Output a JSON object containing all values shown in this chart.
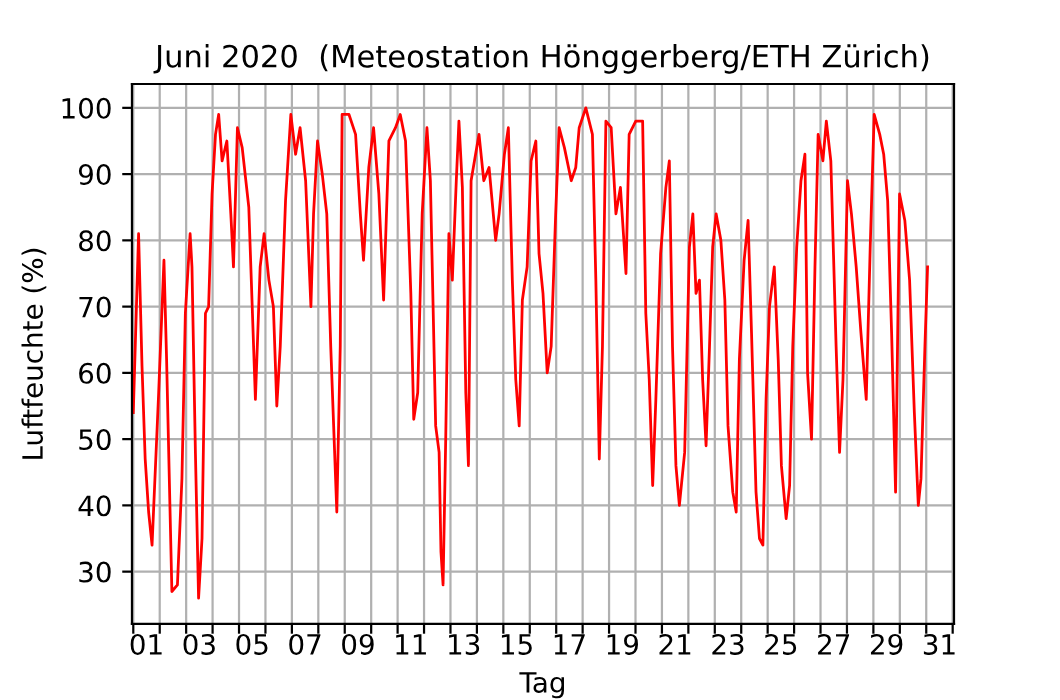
{
  "chart_data": {
    "type": "line",
    "title": "Juni 2020  (Meteostation Hönggerberg/ETH Zürich)",
    "xlabel": "Tag",
    "ylabel": "Luftfeuchte (%)",
    "series": [
      {
        "color": "#ff0000",
        "x": [
          1.0,
          1.2,
          1.33,
          1.45,
          1.58,
          1.71,
          1.96,
          2.16,
          2.26,
          2.46,
          2.67,
          2.84,
          2.97,
          3.15,
          3.22,
          3.35,
          3.47,
          3.6,
          3.73,
          3.85,
          3.98,
          4.11,
          4.23,
          4.36,
          4.54,
          4.69,
          4.79,
          4.94,
          5.12,
          5.37,
          5.62,
          5.8,
          5.95,
          6.13,
          6.3,
          6.43,
          6.56,
          6.76,
          6.96,
          7.14,
          7.31,
          7.52,
          7.72,
          7.82,
          7.97,
          8.15,
          8.32,
          8.47,
          8.58,
          8.7,
          8.83,
          8.9,
          9.16,
          9.41,
          9.59,
          9.71,
          9.91,
          10.09,
          10.29,
          10.47,
          10.67,
          10.92,
          11.1,
          11.3,
          11.5,
          11.61,
          11.76,
          11.93,
          12.11,
          12.24,
          12.44,
          12.57,
          12.64,
          12.72,
          12.82,
          12.94,
          13.07,
          13.22,
          13.32,
          13.45,
          13.58,
          13.68,
          13.78,
          13.95,
          14.08,
          14.26,
          14.46,
          14.71,
          14.84,
          15.04,
          15.19,
          15.34,
          15.47,
          15.6,
          15.72,
          15.9,
          16.05,
          16.23,
          16.35,
          16.5,
          16.66,
          16.81,
          16.98,
          17.11,
          17.31,
          17.57,
          17.74,
          17.87,
          18.12,
          18.37,
          18.5,
          18.63,
          18.75,
          18.88,
          19.08,
          19.26,
          19.43,
          19.64,
          19.76,
          20.01,
          20.27,
          20.39,
          20.52,
          20.65,
          20.77,
          20.95,
          21.15,
          21.28,
          21.4,
          21.53,
          21.66,
          21.86,
          22.04,
          22.17,
          22.29,
          22.42,
          22.54,
          22.67,
          22.8,
          22.92,
          23.05,
          23.23,
          23.38,
          23.5,
          23.68,
          23.81,
          23.93,
          24.11,
          24.26,
          24.39,
          24.56,
          24.69,
          24.82,
          24.94,
          25.07,
          25.25,
          25.4,
          25.52,
          25.7,
          25.83,
          25.95,
          26.1,
          26.26,
          26.41,
          26.51,
          26.66,
          26.79,
          26.91,
          27.09,
          27.22,
          27.39,
          27.59,
          27.72,
          27.85,
          28.02,
          28.17,
          28.35,
          28.53,
          28.73,
          28.88,
          29.03,
          29.24,
          29.39,
          29.54,
          29.69,
          29.84,
          29.99,
          30.19,
          30.37,
          30.55,
          30.7,
          30.8,
          30.95,
          31.05
        ],
        "values": [
          54,
          81,
          61,
          47,
          39,
          34,
          57,
          77,
          62,
          27,
          28,
          44,
          69,
          81,
          76,
          48,
          26,
          35,
          69,
          70,
          87,
          96,
          99,
          92,
          95,
          84,
          76,
          97,
          94,
          85,
          56,
          76,
          81,
          74,
          70,
          55,
          64,
          86,
          99,
          93,
          97,
          89,
          70,
          84,
          95,
          90,
          84,
          64,
          52,
          39,
          64,
          99,
          99,
          96,
          84,
          77,
          91,
          97,
          87,
          71,
          95,
          97,
          99,
          95,
          72,
          53,
          57,
          84,
          97,
          89,
          52,
          48,
          33,
          28,
          50,
          81,
          74,
          89,
          98,
          88,
          57,
          46,
          89,
          93,
          96,
          89,
          91,
          80,
          84,
          93,
          97,
          74,
          59,
          52,
          71,
          76,
          92,
          95,
          78,
          72,
          60,
          64,
          84,
          97,
          94,
          89,
          91,
          97,
          100,
          96,
          74,
          47,
          64,
          98,
          97,
          84,
          88,
          75,
          96,
          98,
          98,
          69,
          59,
          43,
          56,
          78,
          88,
          92,
          64,
          46,
          40,
          48,
          79,
          84,
          72,
          74,
          59,
          49,
          64,
          79,
          84,
          80,
          71,
          52,
          42,
          39,
          62,
          77,
          83,
          66,
          42,
          35,
          34,
          56,
          70,
          76,
          62,
          46,
          38,
          43,
          64,
          79,
          89,
          93,
          60,
          50,
          76,
          96,
          92,
          98,
          92,
          64,
          48,
          59,
          89,
          84,
          76,
          66,
          56,
          79,
          99,
          96,
          93,
          86,
          66,
          42,
          87,
          83,
          74,
          54,
          40,
          44,
          64,
          76
        ]
      }
    ],
    "xlim": [
      0.95,
      32.05
    ],
    "ylim": [
      22.1,
      103.6
    ],
    "xticks": [
      {
        "value": 1,
        "label": null
      },
      {
        "value": 2,
        "label": null
      },
      {
        "value": 3,
        "label": null
      },
      {
        "value": 4,
        "label": null
      },
      {
        "value": 5,
        "label": null
      },
      {
        "value": 6,
        "label": null
      },
      {
        "value": 7,
        "label": null
      },
      {
        "value": 8,
        "label": null
      },
      {
        "value": 9,
        "label": null
      },
      {
        "value": 10,
        "label": null
      },
      {
        "value": 11,
        "label": null
      },
      {
        "value": 12,
        "label": null
      },
      {
        "value": 13,
        "label": null
      },
      {
        "value": 14,
        "label": null
      },
      {
        "value": 15,
        "label": null
      },
      {
        "value": 16,
        "label": null
      },
      {
        "value": 17,
        "label": null
      },
      {
        "value": 18,
        "label": null
      },
      {
        "value": 19,
        "label": null
      },
      {
        "value": 20,
        "label": null
      },
      {
        "value": 21,
        "label": null
      },
      {
        "value": 22,
        "label": null
      },
      {
        "value": 23,
        "label": null
      },
      {
        "value": 24,
        "label": null
      },
      {
        "value": 25,
        "label": null
      },
      {
        "value": 26,
        "label": null
      },
      {
        "value": 27,
        "label": null
      },
      {
        "value": 28,
        "label": null
      },
      {
        "value": 29,
        "label": null
      },
      {
        "value": 30,
        "label": null
      },
      {
        "value": 31,
        "label": null
      },
      {
        "value": 32,
        "label": null
      },
      {
        "value": 1.5,
        "label": "01"
      },
      {
        "value": 3.5,
        "label": "03"
      },
      {
        "value": 5.5,
        "label": "05"
      },
      {
        "value": 7.5,
        "label": "07"
      },
      {
        "value": 9.5,
        "label": "09"
      },
      {
        "value": 11.5,
        "label": "11"
      },
      {
        "value": 13.5,
        "label": "13"
      },
      {
        "value": 15.5,
        "label": "15"
      },
      {
        "value": 17.5,
        "label": "17"
      },
      {
        "value": 19.5,
        "label": "19"
      },
      {
        "value": 21.5,
        "label": "21"
      },
      {
        "value": 23.5,
        "label": "23"
      },
      {
        "value": 25.5,
        "label": "25"
      },
      {
        "value": 27.5,
        "label": "27"
      },
      {
        "value": 29.5,
        "label": "29"
      },
      {
        "value": 31.5,
        "label": "31"
      }
    ],
    "yticks": [
      30,
      40,
      50,
      60,
      70,
      80,
      90,
      100
    ],
    "grid": true,
    "line_style": "solid",
    "marker": "none"
  }
}
